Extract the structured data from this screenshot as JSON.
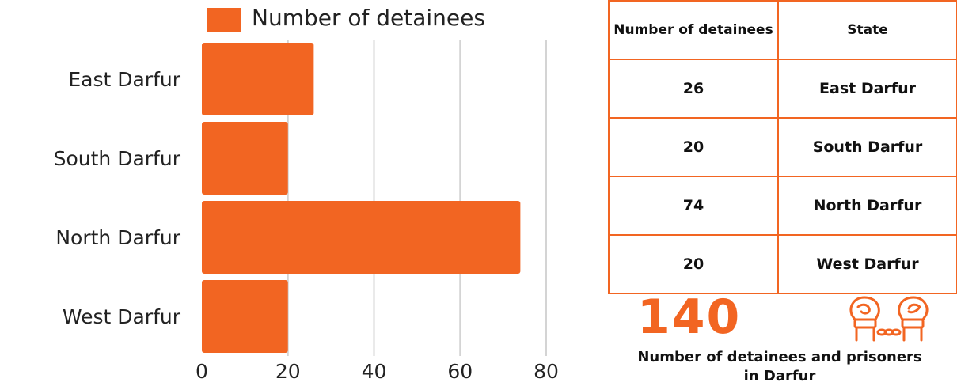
{
  "chart_data": {
    "type": "bar",
    "orientation": "horizontal",
    "categories": [
      "East Darfur",
      "South Darfur",
      "North Darfur",
      "West Darfur"
    ],
    "series": [
      {
        "name": "Number of detainees",
        "values": [
          26,
          20,
          74,
          20
        ]
      }
    ],
    "x_ticks": [
      "0",
      "20",
      "40",
      "60",
      "80"
    ],
    "xlim": [
      0,
      80
    ],
    "grid": "vertical",
    "legend": "top",
    "color": "#F26522"
  },
  "table": {
    "headers": [
      "Number of detainees",
      "State"
    ],
    "rows": [
      {
        "count": "26",
        "state": "East Darfur"
      },
      {
        "count": "20",
        "state": "South Darfur"
      },
      {
        "count": "74",
        "state": "North Darfur"
      },
      {
        "count": "20",
        "state": "West Darfur"
      }
    ]
  },
  "summary": {
    "total": "140",
    "caption": "Number of detainees and prisoners in Darfur",
    "icon": "handcuffed-fists-icon"
  },
  "colors": {
    "accent": "#F26522",
    "grid": "#d4d4d4"
  }
}
